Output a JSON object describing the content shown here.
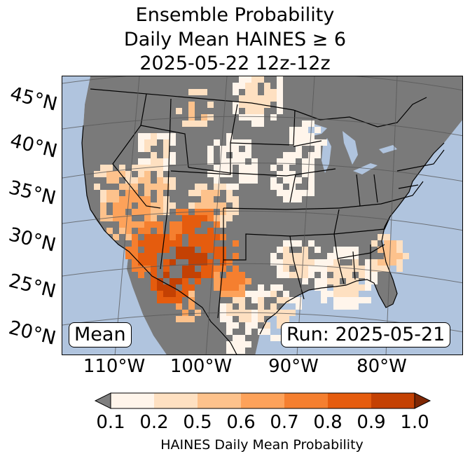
{
  "title": {
    "line1": "Ensemble Probability",
    "line2": "Daily Mean HAINES ≥ 6",
    "line3": "2025-05-22 12z-12z"
  },
  "map": {
    "mean_badge": "Mean",
    "run_badge": "Run: 2025-05-21",
    "lat_labels": [
      "45°N",
      "40°N",
      "35°N",
      "30°N",
      "25°N",
      "20°N"
    ],
    "lon_labels": [
      "110°W",
      "100°W",
      "90°W",
      "80°W"
    ],
    "colors": {
      "ocean": "#b0c4de",
      "land_no_data": "#7a7a7a",
      "border": "#000000",
      "graticule": "#555555"
    }
  },
  "colorbar": {
    "label": "HAINES Daily Mean Probability",
    "ticks": [
      "0.1",
      "0.2",
      "0.5",
      "0.6",
      "0.7",
      "0.8",
      "0.9",
      "1.0"
    ],
    "under_color": "#7f7f7f",
    "over_color": "#7f2704",
    "bins": [
      {
        "from": 0.1,
        "to": 0.2,
        "color": "#fff5eb"
      },
      {
        "from": 0.2,
        "to": 0.5,
        "color": "#fee0c1"
      },
      {
        "from": 0.5,
        "to": 0.6,
        "color": "#fdc28c"
      },
      {
        "from": 0.6,
        "to": 0.7,
        "color": "#fda25a"
      },
      {
        "from": 0.7,
        "to": 0.8,
        "color": "#f57f2f"
      },
      {
        "from": 0.8,
        "to": 0.9,
        "color": "#e55c0e"
      },
      {
        "from": 0.9,
        "to": 1.0,
        "color": "#c44103"
      }
    ]
  }
}
